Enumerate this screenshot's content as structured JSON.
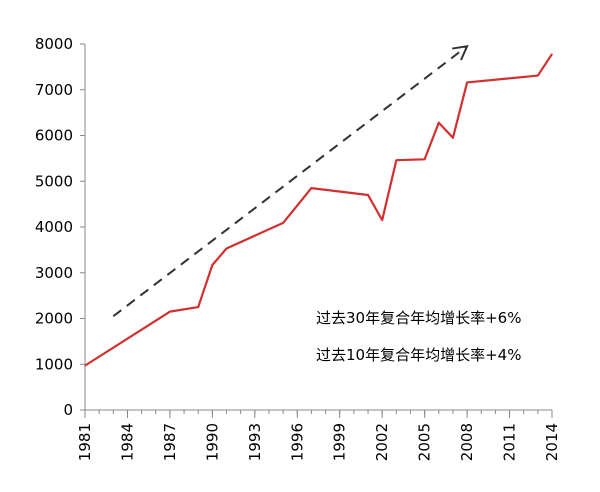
{
  "chart_data": {
    "type": "line",
    "title": "",
    "xlabel": "",
    "ylabel": "",
    "xlim": [
      1981,
      2014
    ],
    "ylim": [
      0,
      8000
    ],
    "yticks": [
      0,
      1000,
      2000,
      3000,
      4000,
      5000,
      6000,
      7000,
      8000
    ],
    "xticks": [
      1981,
      1984,
      1987,
      1990,
      1993,
      1996,
      1999,
      2002,
      2005,
      2008,
      2011,
      2014
    ],
    "grid": false,
    "series_color": "#d03030",
    "trend_color": "#333333",
    "series": [
      {
        "x": [
          1981,
          1987,
          1989,
          1990,
          1991,
          1995,
          1997,
          2001,
          2002,
          2003,
          2005,
          2006,
          2007,
          2008,
          2013,
          2014
        ],
        "y": [
          970,
          2150,
          2250,
          3170,
          3530,
          4090,
          4850,
          4700,
          4150,
          5460,
          5480,
          6280,
          5950,
          7160,
          7310,
          7780
        ]
      }
    ],
    "trend_arrow": {
      "from": [
        1983,
        2050
      ],
      "to": [
        2008,
        7950
      ]
    },
    "annotations": [
      "过去30年复合年均增长率+6%",
      "过去10年复合年均增长率+4%"
    ]
  }
}
